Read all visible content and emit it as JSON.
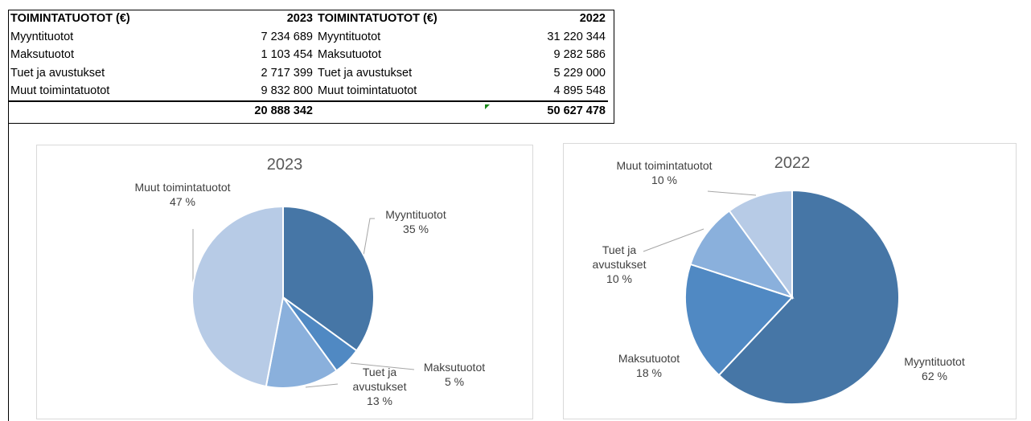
{
  "table": {
    "header": [
      "TOIMINTATUOTOT (€)",
      "2023",
      "TOIMINTATUOTOT (€)",
      "2022"
    ],
    "rows": [
      [
        "Myyntituotot",
        "7 234 689",
        "Myyntituotot",
        "31 220 344"
      ],
      [
        "Maksutuotot",
        "1 103 454",
        "Maksutuotot",
        "9 282 586"
      ],
      [
        "Tuet ja avustukset",
        "2 717 399",
        "Tuet ja avustukset",
        "5 229 000"
      ],
      [
        "Muut toimintatuotot",
        "9 832 800",
        "Muut toimintatuotot",
        "4 895 548"
      ]
    ],
    "totals": [
      "20 888 342",
      "50 627 478"
    ]
  },
  "chart_data": [
    {
      "type": "pie",
      "title": "2023",
      "categories": [
        "Myyntituotot",
        "Maksutuotot",
        "Tuet ja avustukset",
        "Muut toimintatuotot"
      ],
      "values": [
        35,
        5,
        13,
        47
      ],
      "value_labels": [
        "35 %",
        "5 %",
        "13 %",
        "47 %"
      ],
      "colors": [
        "#4676a6",
        "#5089c3",
        "#8ab0dc",
        "#b7cbe6"
      ]
    },
    {
      "type": "pie",
      "title": "2022",
      "categories": [
        "Myyntituotot",
        "Maksutuotot",
        "Tuet ja avustukset",
        "Muut toimintatuotot"
      ],
      "values": [
        62,
        18,
        10,
        10
      ],
      "value_labels": [
        "62 %",
        "18 %",
        "10 %",
        "10 %"
      ],
      "colors": [
        "#4676a6",
        "#5089c3",
        "#8ab0dc",
        "#b7cbe6"
      ]
    }
  ]
}
